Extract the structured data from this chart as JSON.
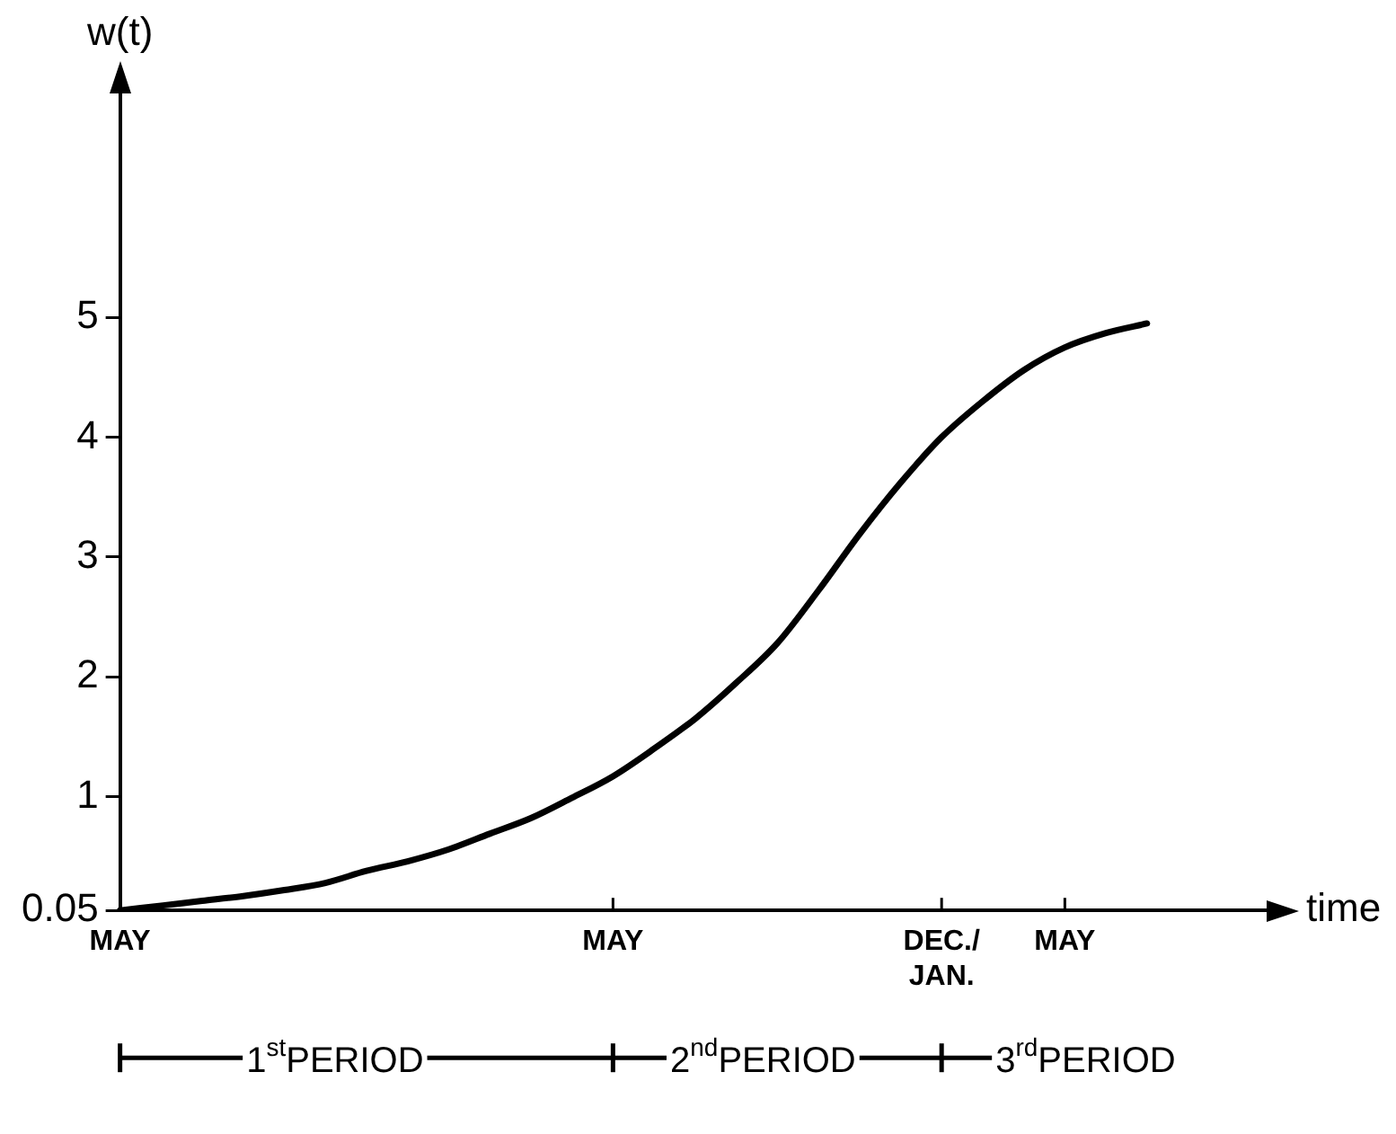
{
  "chart_data": {
    "type": "line",
    "xlabel": "time",
    "ylabel": "w(t)",
    "categories": [
      "MAY",
      null,
      null,
      null,
      null,
      null,
      null,
      null,
      null,
      null,
      null,
      null,
      "MAY",
      null,
      null,
      null,
      null,
      null,
      null,
      null,
      "DEC./ JAN.",
      null,
      null,
      "MAY",
      null,
      null,
      null,
      null,
      null
    ],
    "series": [
      {
        "color": "#000000",
        "values": [
          0.05,
          0.09,
          0.13,
          0.17,
          0.22,
          0.28,
          0.38,
          0.46,
          0.56,
          0.69,
          0.82,
          0.99,
          1.17,
          1.4,
          1.65,
          1.95,
          2.28,
          2.72,
          3.19,
          3.62,
          4.0,
          4.3,
          4.56,
          4.75,
          4.87,
          4.95,
          null,
          null,
          null
        ]
      }
    ],
    "ylim": [
      0.05,
      6.9
    ],
    "yticks": [
      0.05,
      1,
      2,
      3,
      4,
      5
    ],
    "annotations": [
      "1$^{st}$PERIOD",
      "2$^{nd}$PERIOD",
      "3$^{rd}$PERIOD"
    ],
    "marker": "none",
    "line_style": "solid",
    "legend": false,
    "grid": false
  }
}
